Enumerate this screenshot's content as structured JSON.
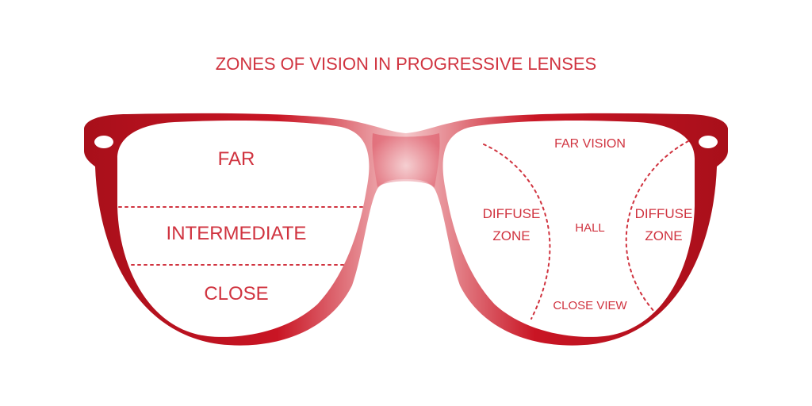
{
  "title": "ZONES OF VISION IN PROGRESSIVE LENSES",
  "colors": {
    "frame_dark": "#a80f1a",
    "frame_mid": "#d71d2b",
    "frame_light": "#f4c6c9",
    "text": "#d0333f",
    "lens": "#ffffff"
  },
  "left_lens": {
    "zones": [
      "FAR",
      "INTERMEDIATE",
      "CLOSE"
    ]
  },
  "right_lens": {
    "far_vision": "FAR VISION",
    "diffuse_left": [
      "DIFFUSE",
      "ZONE"
    ],
    "hall": "HALL",
    "diffuse_right": [
      "DIFFUSE",
      "ZONE"
    ],
    "close_view": "CLOSE VIEW"
  }
}
